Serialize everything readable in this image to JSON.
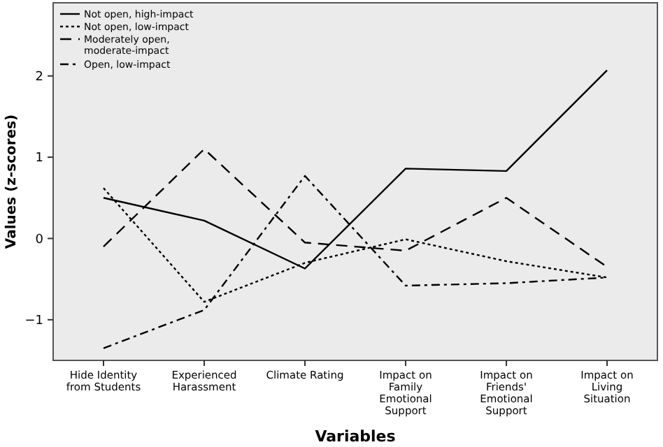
{
  "chart_data": {
    "type": "line",
    "xlabel": "Variables",
    "ylabel": "Values (z-scores)",
    "categories": [
      "Hide Identity from Students",
      "Experienced Harassment",
      "Climate Rating",
      "Impact on Family Emotional Support",
      "Impact on Friends' Emotional Support",
      "Impact on Living Situation"
    ],
    "ylim": [
      -1.5,
      2.9
    ],
    "yticks": [
      -1,
      0,
      1,
      2
    ],
    "legend": "top left",
    "grid": false,
    "marker": "none",
    "series": [
      {
        "name": "Not open, high-impact",
        "color": "#000000",
        "line_style": "solid",
        "values": [
          0.5,
          0.22,
          -0.37,
          0.86,
          0.83,
          2.07
        ]
      },
      {
        "name": "Not open, low-impact",
        "color": "#000000",
        "line_style": "dotted",
        "values": [
          0.62,
          -0.78,
          -0.3,
          -0.01,
          -0.28,
          -0.48
        ]
      },
      {
        "name": "Moderately open, moderate-impact",
        "color": "#000000",
        "line_style": "dashed",
        "values": [
          -0.1,
          1.1,
          -0.05,
          -0.15,
          0.5,
          -0.35
        ]
      },
      {
        "name": "Open, low-impact",
        "color": "#000000",
        "line_style": "dashdot",
        "values": [
          -1.35,
          -0.88,
          0.77,
          -0.58,
          -0.55,
          -0.48
        ]
      }
    ]
  }
}
